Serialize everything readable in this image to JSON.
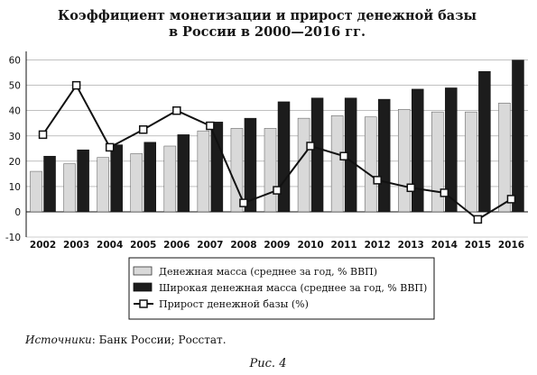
{
  "chart_data": {
    "type": "bar",
    "title_lines": [
      "Коэффициент монетизации и прирост денежной базы",
      "в России в 2000—2016 гг."
    ],
    "categories": [
      "2002",
      "2003",
      "2004",
      "2005",
      "2006",
      "2007",
      "2008",
      "2009",
      "2010",
      "2011",
      "2012",
      "2013",
      "2014",
      "2015",
      "2016"
    ],
    "series": [
      {
        "name": "Денежная масса (среднее за год, % ВВП)",
        "kind": "bar",
        "color": "#d9d9d9",
        "values": [
          16,
          19,
          21.5,
          23,
          26,
          32,
          33,
          33,
          37,
          38,
          37.5,
          40.5,
          39.5,
          39.5,
          43
        ]
      },
      {
        "name": "Широкая денежная масса (среднее за год, % ВВП)",
        "kind": "bar",
        "color": "#1c1c1c",
        "values": [
          22,
          24.5,
          26.5,
          27.5,
          30.5,
          35.5,
          37,
          43.5,
          45,
          45,
          44.5,
          48.5,
          49,
          55.5,
          60
        ]
      },
      {
        "name": "Прирост денежной базы (%)",
        "kind": "line",
        "color": "#111111",
        "values": [
          30.5,
          50,
          25.5,
          32.5,
          40,
          34,
          3.5,
          8.5,
          26,
          22,
          12.5,
          9.5,
          7.5,
          -3,
          5
        ]
      }
    ],
    "yticks": [
      "60",
      "50",
      "40",
      "30",
      "20",
      "10",
      "0",
      "-10"
    ],
    "ylim": [
      -10,
      62
    ],
    "grid": true,
    "legend_position": "bottom"
  },
  "source_note": {
    "label": "Источники",
    "text": ": Банк России; Росстат."
  },
  "caption": "Рис. 4"
}
